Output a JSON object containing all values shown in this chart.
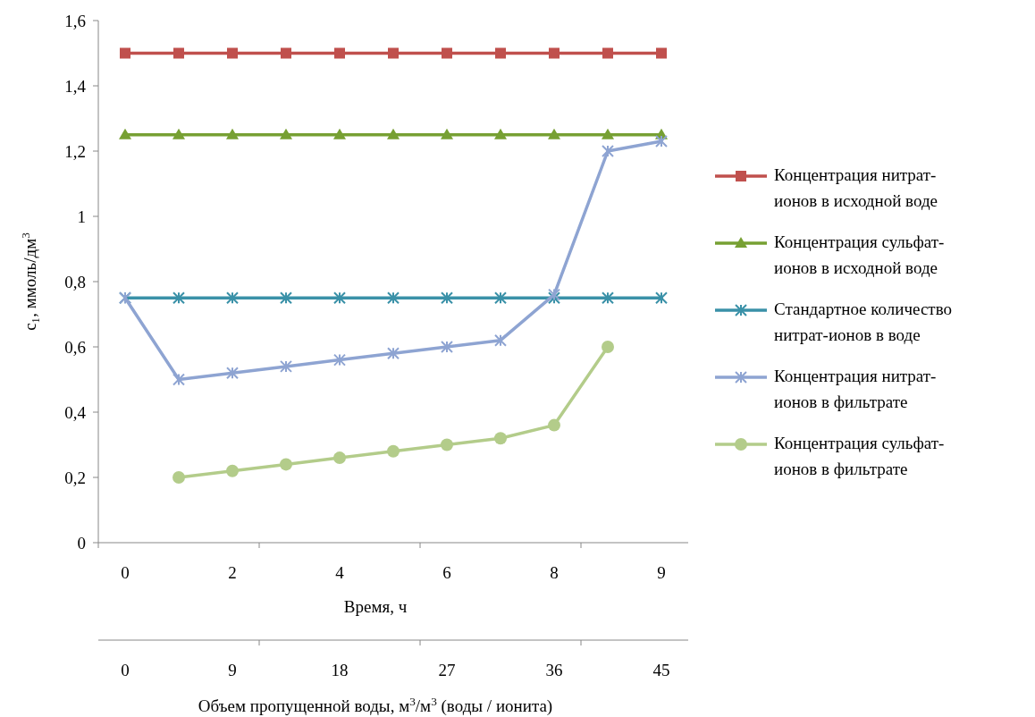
{
  "chart_data": {
    "type": "line",
    "xlabel": "Время, ч",
    "x2label": "Объем пропущенной воды, м$^{3}$/м$^{3}$ (воды / ионита)",
    "ylabel": "c₁, ммоль/дм$^{3}$",
    "categories": [
      "0",
      null,
      "2",
      null,
      "4",
      null,
      "6",
      null,
      "8",
      null,
      "9"
    ],
    "x2lim": [
      -2.25,
      47.25
    ],
    "x2ticks": [
      0,
      9,
      18,
      27,
      36,
      45,
      {
        "value": 11.25,
        "label": null
      },
      {
        "value": 24.75,
        "label": null
      },
      {
        "value": 38.25,
        "label": null
      }
    ],
    "ylim": [
      0,
      1.6
    ],
    "yticks": [
      0,
      {
        "value": 0.2,
        "label": "0,2"
      },
      {
        "value": 0.4,
        "label": "0,4"
      },
      {
        "value": 0.6,
        "label": "0,6"
      },
      {
        "value": 0.8,
        "label": "0,8"
      },
      1,
      {
        "value": 1.2,
        "label": "1,2"
      },
      {
        "value": 1.4,
        "label": "1,4"
      },
      {
        "value": 1.6,
        "label": "1,6"
      }
    ],
    "grid": false,
    "legend": "right",
    "series": [
      {
        "name": "Концентрация нитрат-ионов в исходной воде",
        "color": "#c0504d",
        "marker": "square",
        "values": [
          1.5,
          1.5,
          1.5,
          1.5,
          1.5,
          1.5,
          1.5,
          1.5,
          1.5,
          1.5,
          1.5
        ]
      },
      {
        "name": "Концентрация сульфат-ионов в исходной воде",
        "color": "#77a033",
        "marker": "triangle",
        "values": [
          1.25,
          1.25,
          1.25,
          1.25,
          1.25,
          1.25,
          1.25,
          1.25,
          1.25,
          1.25,
          1.25
        ]
      },
      {
        "name": "Стандартное количество нитрат-ионов в воде",
        "color": "#3a91a8",
        "marker": "cross",
        "values": [
          0.75,
          0.75,
          0.75,
          0.75,
          0.75,
          0.75,
          0.75,
          0.75,
          0.75,
          0.75,
          0.75
        ]
      },
      {
        "name": "Концентрация нитрат-ионов в фильтрате",
        "color": "#8ea4d2",
        "marker": "cross",
        "values": [
          0.75,
          0.5,
          0.52,
          0.54,
          0.56,
          0.58,
          0.6,
          0.62,
          0.76,
          1.2,
          1.23
        ]
      },
      {
        "name": "Концентрация сульфат-ионов в фильтрате",
        "color": "#b3cc8a",
        "marker": "circle",
        "values": [
          null,
          0.2,
          0.22,
          0.24,
          0.26,
          0.28,
          0.3,
          0.32,
          0.36,
          0.6,
          null
        ]
      }
    ]
  }
}
